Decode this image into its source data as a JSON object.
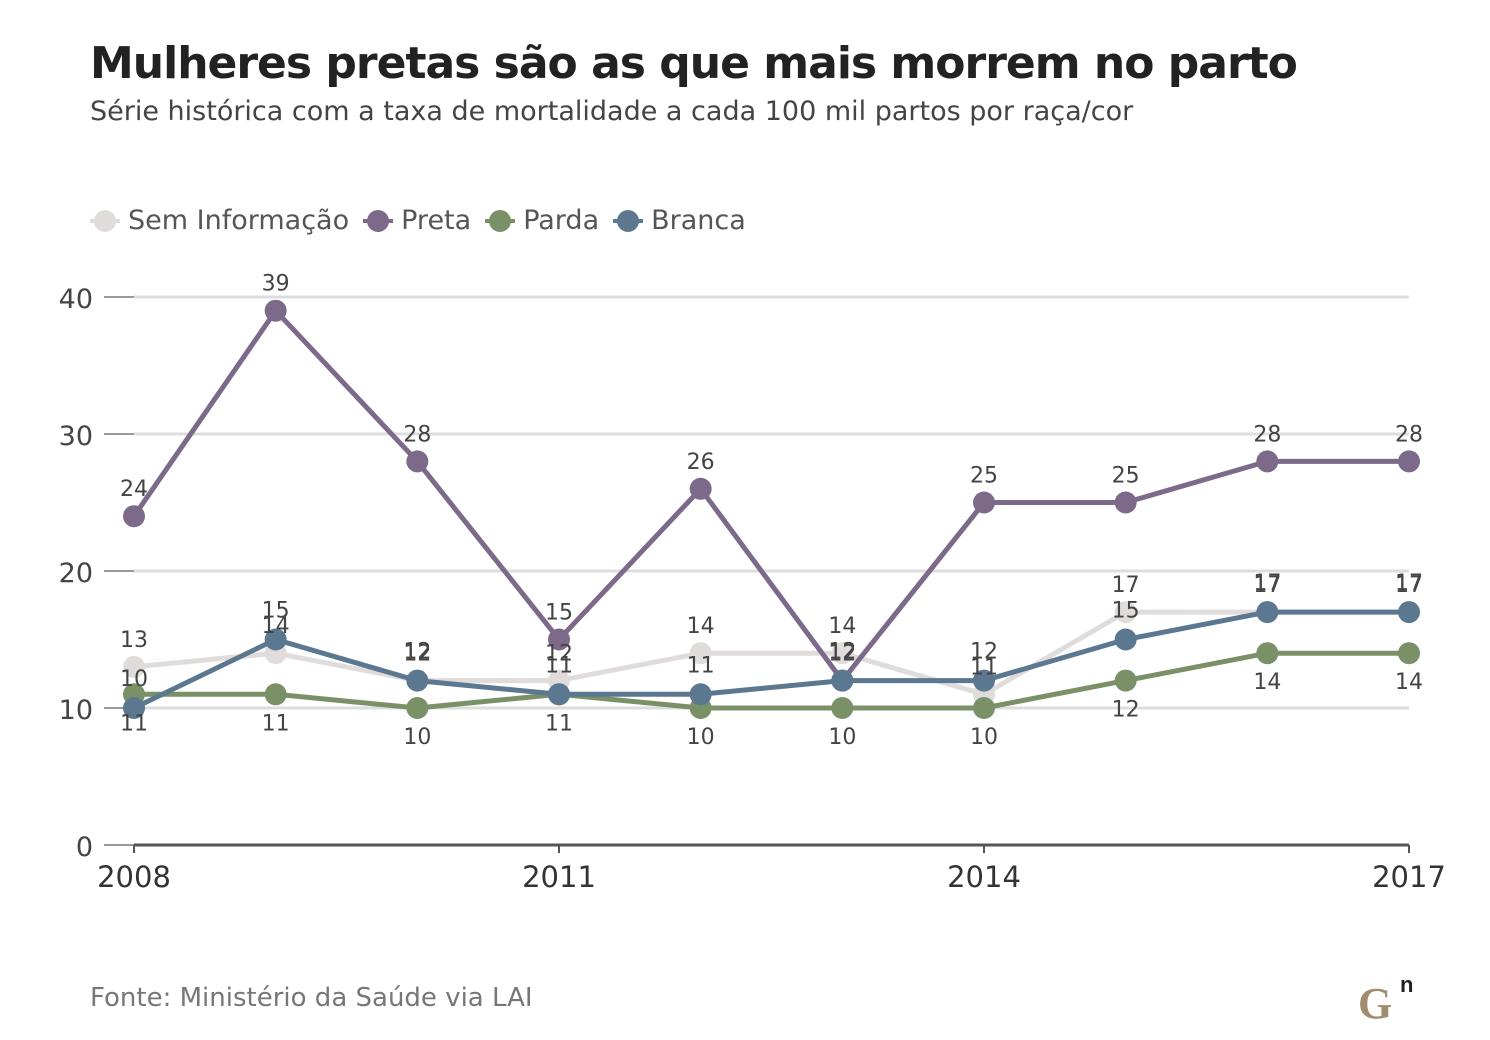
{
  "header": {
    "title": "Mulheres pretas são as que mais morrem no parto",
    "subtitle": "Série histórica com a taxa de mortalidade a cada 100 mil partos por raça/cor"
  },
  "footer": {
    "source": "Fonte: Ministério da Saúde via LAI",
    "logo_icon": "gn-logo-icon",
    "logo_text": "G",
    "logo_sup": "n"
  },
  "colors": {
    "sem_informacao": "#e0dcdc",
    "preta": "#7d6a8a",
    "parda": "#7a9168",
    "branca": "#5c7891",
    "grid": "#dddddd",
    "axis": "#555555",
    "logo": "#a08c6e"
  },
  "chart_data": {
    "type": "line",
    "title": "Mulheres pretas são as que mais morrem no parto",
    "subtitle": "Série histórica com a taxa de mortalidade a cada 100 mil partos por raça/cor",
    "x": [
      2008,
      2009,
      2010,
      2011,
      2012,
      2013,
      2014,
      2015,
      2016,
      2017
    ],
    "x_tick_labels": [
      "2008",
      "2011",
      "2014",
      "2017"
    ],
    "y_ticks": [
      0,
      10,
      20,
      30,
      40
    ],
    "ylim": [
      0,
      40
    ],
    "grid": true,
    "legend_position": "top-left",
    "series": [
      {
        "name": "Sem Informação",
        "color": "#e0dcdc",
        "values": [
          13,
          14,
          12,
          12,
          14,
          14,
          11,
          17,
          17,
          17
        ]
      },
      {
        "name": "Preta",
        "color": "#7d6a8a",
        "values": [
          24,
          39,
          28,
          15,
          26,
          12,
          25,
          25,
          28,
          28
        ]
      },
      {
        "name": "Parda",
        "color": "#7a9168",
        "values": [
          11,
          11,
          10,
          11,
          10,
          10,
          10,
          12,
          14,
          14
        ]
      },
      {
        "name": "Branca",
        "color": "#5c7891",
        "values": [
          10,
          15,
          12,
          11,
          11,
          12,
          12,
          15,
          17,
          17
        ]
      }
    ]
  }
}
